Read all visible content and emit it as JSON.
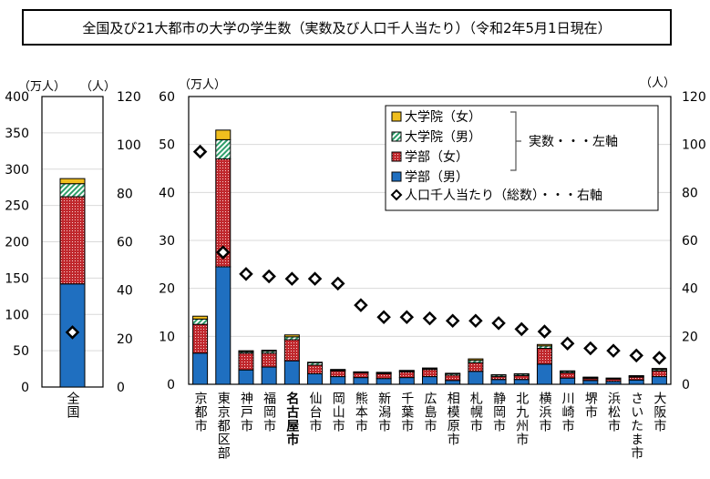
{
  "title": "全国及び21大都市の大学の学生数（実数及び人口千人当たり）（令和2年5月1日現在）",
  "colors": {
    "gakubu_male": "#1f6fc0",
    "gakubu_female": "#c0282d",
    "in_male": "#2e9e6a",
    "in_female": "#f0be1e"
  },
  "chart_data": [
    {
      "type": "bar",
      "stacked": true,
      "categories": [
        "全国"
      ],
      "left_unit": "（万人）",
      "right_unit": "（人）",
      "ylim_left": [
        0,
        400
      ],
      "yticks_left": [
        0,
        50,
        100,
        150,
        200,
        250,
        300,
        350,
        400
      ],
      "ylim_right": [
        0,
        120
      ],
      "yticks_right": [
        0,
        20,
        40,
        60,
        80,
        100,
        120
      ],
      "grid": true,
      "series": [
        {
          "name": "学部（男）",
          "values": [
            142
          ]
        },
        {
          "name": "学部（女）",
          "values": [
            120
          ]
        },
        {
          "name": "大学院（男）",
          "values": [
            18
          ]
        },
        {
          "name": "大学院（女）",
          "values": [
            7
          ]
        }
      ],
      "per_thousand": [
        22.6
      ]
    },
    {
      "type": "bar",
      "stacked": true,
      "categories": [
        "京都市",
        "東京都区部",
        "神戸市",
        "福岡市",
        "名古屋市",
        "仙台市",
        "岡山市",
        "熊本市",
        "新潟市",
        "千葉市",
        "広島市",
        "相模原市",
        "札幌市",
        "静岡市",
        "北九州市",
        "横浜市",
        "川崎市",
        "堺市",
        "浜松市",
        "さいたま市",
        "大阪市"
      ],
      "highlight_category": "名古屋市",
      "left_unit": "（万人）",
      "right_unit": "（人）",
      "ylim_left": [
        0,
        60
      ],
      "yticks_left": [
        0,
        10,
        20,
        30,
        40,
        50,
        60
      ],
      "ylim_right": [
        0,
        120
      ],
      "yticks_right": [
        0,
        20,
        40,
        60,
        80,
        100,
        120
      ],
      "grid": true,
      "legend_position": "top-right",
      "series": [
        {
          "name": "学部（男）",
          "values": [
            6.5,
            24.5,
            3.0,
            3.6,
            4.9,
            2.2,
            1.6,
            1.4,
            1.2,
            1.4,
            1.6,
            0.8,
            2.7,
            1.0,
            1.0,
            4.2,
            1.3,
            0.8,
            0.6,
            0.9,
            1.6
          ]
        },
        {
          "name": "学部（女）",
          "values": [
            6.0,
            22.5,
            3.5,
            2.9,
            4.4,
            1.8,
            1.2,
            1.0,
            1.0,
            1.2,
            1.5,
            1.1,
            1.8,
            0.6,
            0.8,
            3.3,
            1.1,
            0.4,
            0.5,
            0.6,
            1.2
          ]
        },
        {
          "name": "大学院（男）",
          "values": [
            1.1,
            4.0,
            0.3,
            0.4,
            0.6,
            0.5,
            0.2,
            0.15,
            0.2,
            0.2,
            0.2,
            0.3,
            0.5,
            0.3,
            0.3,
            0.5,
            0.3,
            0.2,
            0.15,
            0.2,
            0.3
          ]
        },
        {
          "name": "大学院（女）",
          "values": [
            0.6,
            2.0,
            0.2,
            0.2,
            0.4,
            0.1,
            0.1,
            0.05,
            0.1,
            0.1,
            0.1,
            0.1,
            0.3,
            0.1,
            0.1,
            0.3,
            0.1,
            0.1,
            0.05,
            0.1,
            0.2
          ]
        }
      ],
      "per_thousand": [
        97,
        55,
        46,
        45,
        44,
        44,
        42,
        33,
        28,
        28,
        27.5,
        26.5,
        26.5,
        25.5,
        23,
        22,
        17,
        15,
        14,
        12,
        11
      ],
      "legend": {
        "items": [
          "大学院（女）",
          "大学院（男）",
          "学部（女）",
          "学部（男）"
        ],
        "bracket_note": "実数・・・左軸",
        "marker_item": "人口千人当たり（総数）・・・右軸"
      }
    }
  ]
}
